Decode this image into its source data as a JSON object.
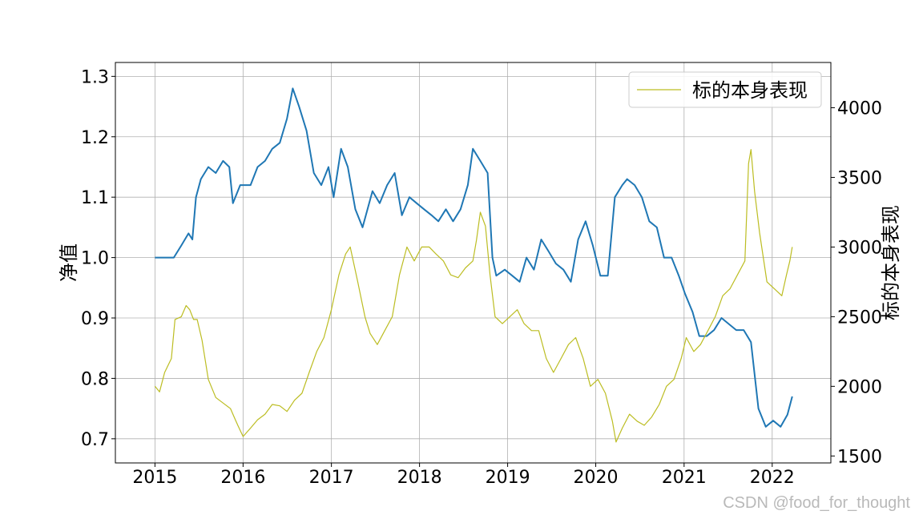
{
  "chart_data": {
    "type": "line",
    "title": "",
    "xlabel": "",
    "ylabel": "净值",
    "ylabel_right": "标的本身表现",
    "grid": true,
    "legend": {
      "position": "top-right",
      "entries": [
        "标的本身表现"
      ]
    },
    "x_range": [
      "2014-07-21",
      "2022-09-01"
    ],
    "ylim": [
      0.66,
      1.323
    ],
    "ylim_right": [
      1450,
      4325
    ],
    "x_ticks": [
      "2015",
      "2016",
      "2017",
      "2018",
      "2019",
      "2020",
      "2021",
      "2022"
    ],
    "y_ticks": [
      "0.7",
      "0.8",
      "0.9",
      "1.0",
      "1.1",
      "1.2",
      "1.3"
    ],
    "y_ticks_right": [
      "1500",
      "2000",
      "2500",
      "3000",
      "3500",
      "4000"
    ],
    "series": [
      {
        "name": "",
        "axis": "left",
        "color": "#1f77b4",
        "x": [
          "2015-01-01",
          "2015-03-01",
          "2015-03-20",
          "2015-04-20",
          "2015-05-20",
          "2015-06-05",
          "2015-06-20",
          "2015-07-10",
          "2015-08-10",
          "2015-09-10",
          "2015-10-10",
          "2015-11-05",
          "2015-11-20",
          "2015-12-20",
          "2016-02-01",
          "2016-03-01",
          "2016-04-01",
          "2016-05-01",
          "2016-06-01",
          "2016-07-01",
          "2016-07-25",
          "2016-08-20",
          "2016-09-20",
          "2016-10-20",
          "2016-11-20",
          "2016-12-20",
          "2017-01-10",
          "2017-02-10",
          "2017-03-10",
          "2017-04-10",
          "2017-05-10",
          "2017-06-20",
          "2017-07-20",
          "2017-08-20",
          "2017-09-20",
          "2017-10-20",
          "2017-11-20",
          "2017-12-20",
          "2018-01-20",
          "2018-02-20",
          "2018-03-20",
          "2018-04-20",
          "2018-05-20",
          "2018-06-20",
          "2018-07-20",
          "2018-08-10",
          "2018-09-10",
          "2018-10-10",
          "2018-10-30",
          "2018-11-15",
          "2018-12-20",
          "2019-01-20",
          "2019-02-20",
          "2019-03-20",
          "2019-04-20",
          "2019-05-20",
          "2019-06-20",
          "2019-07-20",
          "2019-08-20",
          "2019-09-20",
          "2019-10-20",
          "2019-11-20",
          "2019-12-20",
          "2020-01-20",
          "2020-02-20",
          "2020-03-20",
          "2020-04-20",
          "2020-05-10",
          "2020-06-10",
          "2020-07-10",
          "2020-08-10",
          "2020-09-10",
          "2020-10-10",
          "2020-11-10",
          "2020-12-10",
          "2021-01-05",
          "2021-02-05",
          "2021-03-05",
          "2021-04-05",
          "2021-05-05",
          "2021-06-05",
          "2021-07-05",
          "2021-08-05",
          "2021-09-05",
          "2021-10-05",
          "2021-11-05",
          "2021-12-05",
          "2022-01-05",
          "2022-02-05",
          "2022-03-05",
          "2022-03-25"
        ],
        "values": [
          1.0,
          1.0,
          1.0,
          1.02,
          1.04,
          1.03,
          1.1,
          1.13,
          1.15,
          1.14,
          1.16,
          1.15,
          1.09,
          1.12,
          1.12,
          1.15,
          1.16,
          1.18,
          1.19,
          1.23,
          1.28,
          1.25,
          1.21,
          1.14,
          1.12,
          1.15,
          1.1,
          1.18,
          1.15,
          1.08,
          1.05,
          1.11,
          1.09,
          1.12,
          1.14,
          1.07,
          1.1,
          1.09,
          1.08,
          1.07,
          1.06,
          1.08,
          1.06,
          1.08,
          1.12,
          1.18,
          1.16,
          1.14,
          1.0,
          0.97,
          0.98,
          0.97,
          0.96,
          1.0,
          0.98,
          1.03,
          1.01,
          0.99,
          0.98,
          0.96,
          1.03,
          1.06,
          1.02,
          0.97,
          0.97,
          1.1,
          1.12,
          1.13,
          1.12,
          1.1,
          1.06,
          1.05,
          1.0,
          1.0,
          0.97,
          0.94,
          0.91,
          0.87,
          0.87,
          0.88,
          0.9,
          0.89,
          0.88,
          0.88,
          0.86,
          0.75,
          0.72,
          0.73,
          0.72,
          0.74,
          0.77
        ]
      },
      {
        "name": "标的本身表现",
        "axis": "right",
        "color": "#bcbd22",
        "x": [
          "2015-01-01",
          "2015-01-20",
          "2015-02-10",
          "2015-03-10",
          "2015-03-25",
          "2015-04-20",
          "2015-05-10",
          "2015-05-25",
          "2015-06-10",
          "2015-06-25",
          "2015-07-15",
          "2015-08-10",
          "2015-09-10",
          "2015-10-10",
          "2015-11-10",
          "2015-11-25",
          "2015-12-10",
          "2016-01-01",
          "2016-02-01",
          "2016-03-01",
          "2016-04-01",
          "2016-05-01",
          "2016-06-01",
          "2016-07-01",
          "2016-08-01",
          "2016-09-01",
          "2016-10-01",
          "2016-11-01",
          "2016-12-01",
          "2017-01-01",
          "2017-02-01",
          "2017-03-01",
          "2017-03-20",
          "2017-04-20",
          "2017-05-20",
          "2017-06-10",
          "2017-07-10",
          "2017-08-10",
          "2017-09-10",
          "2017-10-10",
          "2017-11-10",
          "2017-12-10",
          "2018-01-10",
          "2018-02-10",
          "2018-03-10",
          "2018-04-10",
          "2018-05-10",
          "2018-06-10",
          "2018-07-10",
          "2018-08-10",
          "2018-08-25",
          "2018-09-10",
          "2018-10-01",
          "2018-10-20",
          "2018-11-10",
          "2018-12-10",
          "2019-01-10",
          "2019-02-10",
          "2019-03-10",
          "2019-04-10",
          "2019-05-10",
          "2019-06-10",
          "2019-07-10",
          "2019-08-10",
          "2019-09-10",
          "2019-10-10",
          "2019-11-10",
          "2019-12-10",
          "2020-01-10",
          "2020-02-10",
          "2020-03-10",
          "2020-03-25",
          "2020-04-20",
          "2020-05-20",
          "2020-06-20",
          "2020-07-20",
          "2020-08-20",
          "2020-09-20",
          "2020-10-20",
          "2020-11-20",
          "2020-12-20",
          "2021-01-10",
          "2021-02-10",
          "2021-03-10",
          "2021-04-10",
          "2021-05-10",
          "2021-06-10",
          "2021-07-10",
          "2021-08-10",
          "2021-09-10",
          "2021-09-25",
          "2021-10-05",
          "2021-10-20",
          "2021-11-10",
          "2021-12-10",
          "2022-01-10",
          "2022-02-10",
          "2022-03-01",
          "2022-03-15",
          "2022-03-25"
        ],
        "values": [
          2000,
          1960,
          2100,
          2200,
          2480,
          2500,
          2580,
          2550,
          2480,
          2480,
          2330,
          2050,
          1920,
          1880,
          1840,
          1780,
          1720,
          1640,
          1700,
          1760,
          1800,
          1870,
          1860,
          1820,
          1900,
          1950,
          2100,
          2250,
          2350,
          2550,
          2800,
          2950,
          3000,
          2750,
          2500,
          2380,
          2300,
          2400,
          2500,
          2800,
          3000,
          2900,
          3000,
          3000,
          2950,
          2900,
          2800,
          2780,
          2850,
          2900,
          3050,
          3250,
          3150,
          2800,
          2500,
          2450,
          2500,
          2550,
          2450,
          2400,
          2400,
          2200,
          2100,
          2200,
          2300,
          2350,
          2200,
          2000,
          2050,
          1950,
          1750,
          1600,
          1700,
          1800,
          1750,
          1720,
          1780,
          1870,
          2000,
          2050,
          2200,
          2350,
          2250,
          2300,
          2400,
          2500,
          2650,
          2700,
          2800,
          2900,
          3600,
          3700,
          3400,
          3100,
          2750,
          2700,
          2650,
          2800,
          2900,
          3000
        ]
      }
    ]
  },
  "watermark": "CSDN @food_for_thought"
}
